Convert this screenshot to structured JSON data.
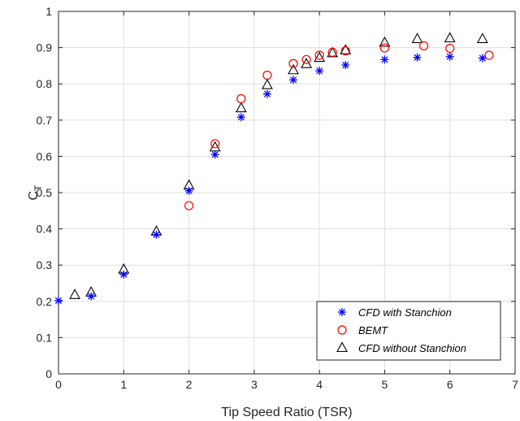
{
  "chart_data": {
    "type": "scatter",
    "xlabel": "Tip Speed Ratio (TSR)",
    "ylabel": "C",
    "ylabel_subscript": "T",
    "xlim": [
      0,
      7
    ],
    "ylim": [
      0,
      1
    ],
    "x_ticks": [
      0,
      1,
      2,
      3,
      4,
      5,
      6,
      7
    ],
    "y_ticks": [
      0,
      0.1,
      0.2,
      0.3,
      0.4,
      0.5,
      0.6,
      0.7,
      0.8,
      0.9,
      1
    ],
    "grid": true,
    "legend_position": "bottom-right",
    "series": [
      {
        "name": "CFD with Stanchion",
        "marker": "asterisk",
        "color": "#0000ff",
        "x": [
          0,
          0.5,
          1,
          1.5,
          2,
          2.4,
          2.8,
          3.2,
          3.6,
          4,
          4.4,
          5,
          5.5,
          6,
          6.5
        ],
        "y": [
          0.202,
          0.214,
          0.274,
          0.384,
          0.505,
          0.605,
          0.708,
          0.772,
          0.811,
          0.836,
          0.852,
          0.867,
          0.873,
          0.875,
          0.871
        ]
      },
      {
        "name": "BEMT",
        "marker": "circle",
        "color": "#ff0000",
        "x": [
          2,
          2.4,
          2.8,
          3.2,
          3.6,
          3.8,
          4,
          4.2,
          4.4,
          5,
          5.6,
          6,
          6.6
        ],
        "y": [
          0.464,
          0.635,
          0.759,
          0.824,
          0.856,
          0.867,
          0.879,
          0.887,
          0.891,
          0.899,
          0.905,
          0.898,
          0.879
        ]
      },
      {
        "name": "CFD without Stanchion",
        "marker": "triangle",
        "color": "#000000",
        "x": [
          0.25,
          0.5,
          1,
          1.5,
          2,
          2.4,
          2.8,
          3.2,
          3.6,
          3.8,
          4,
          4.2,
          4.4,
          5,
          5.5,
          6,
          6.5
        ],
        "y": [
          0.218,
          0.225,
          0.288,
          0.393,
          0.52,
          0.625,
          0.733,
          0.797,
          0.838,
          0.855,
          0.872,
          0.885,
          0.893,
          0.914,
          0.924,
          0.926,
          0.924
        ]
      }
    ]
  }
}
